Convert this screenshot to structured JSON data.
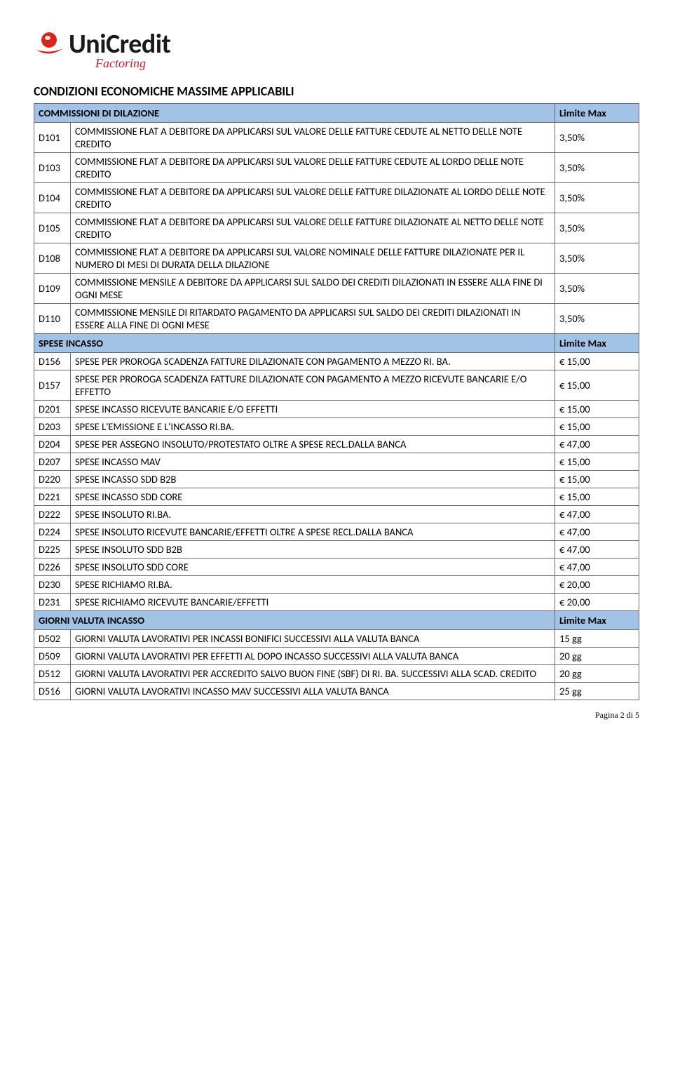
{
  "logo": {
    "icon_colors": {
      "ball": "#d9261c",
      "swoosh": "#d9261c",
      "text": "#1a1a1a",
      "sub": "#c8202f"
    },
    "main": "UniCredit",
    "sub": "Factoring"
  },
  "page_title": "CONDIZIONI ECONOMICHE MASSIME APPLICABILI",
  "colors": {
    "section_bg": "#a2c3e6",
    "border": "#6b6b6b",
    "page_bg": "#ffffff"
  },
  "sections": [
    {
      "title": "COMMISSIONI DI DILAZIONE",
      "limit_label": "Limite Max",
      "rows": [
        {
          "code": "D101",
          "desc": "COMMISSIONE FLAT A DEBITORE DA APPLICARSI SUL VALORE DELLE FATTURE CEDUTE AL NETTO DELLE NOTE CREDITO",
          "value": "3,50%"
        },
        {
          "code": "D103",
          "desc": "COMMISSIONE FLAT A DEBITORE DA APPLICARSI SUL VALORE DELLE FATTURE CEDUTE AL LORDO DELLE NOTE CREDITO",
          "value": "3,50%"
        },
        {
          "code": "D104",
          "desc": "COMMISSIONE FLAT A DEBITORE DA APPLICARSI SUL VALORE DELLE FATTURE DILAZIONATE AL LORDO DELLE NOTE CREDITO",
          "value": "3,50%"
        },
        {
          "code": "D105",
          "desc": "COMMISSIONE FLAT A DEBITORE DA APPLICARSI SUL VALORE DELLE FATTURE DILAZIONATE AL NETTO DELLE NOTE CREDITO",
          "value": "3,50%"
        },
        {
          "code": "D108",
          "desc": "COMMISSIONE FLAT A DEBITORE DA APPLICARSI SUL VALORE NOMINALE DELLE FATTURE DILAZIONATE PER IL NUMERO DI MESI DI DURATA DELLA DILAZIONE",
          "value": "3,50%"
        },
        {
          "code": "D109",
          "desc": "COMMISSIONE MENSILE A DEBITORE DA APPLICARSI SUL SALDO DEI CREDITI DILAZIONATI IN ESSERE ALLA FINE DI OGNI MESE",
          "value": "3,50%"
        },
        {
          "code": "D110",
          "desc": "COMMISSIONE MENSILE DI RITARDATO PAGAMENTO DA APPLICARSI SUL SALDO DEI CREDITI DILAZIONATI IN ESSERE ALLA FINE DI OGNI MESE",
          "value": "3,50%"
        }
      ]
    },
    {
      "title": "SPESE INCASSO",
      "limit_label": "Limite Max",
      "rows": [
        {
          "code": "D156",
          "desc": "SPESE PER PROROGA SCADENZA FATTURE DILAZIONATE CON PAGAMENTO A MEZZO RI. BA.",
          "value": "€ 15,00"
        },
        {
          "code": "D157",
          "desc": "SPESE PER PROROGA SCADENZA FATTURE DILAZIONATE CON PAGAMENTO A MEZZO RICEVUTE BANCARIE E/O EFFETTO",
          "value": "€ 15,00"
        },
        {
          "code": "D201",
          "desc": "SPESE INCASSO RICEVUTE BANCARIE E/O EFFETTI",
          "value": "€ 15,00"
        },
        {
          "code": "D203",
          "desc": "SPESE L'EMISSIONE E L'INCASSO RI.BA.",
          "value": "€ 15,00"
        },
        {
          "code": "D204",
          "desc": "SPESE PER ASSEGNO INSOLUTO/PROTESTATO OLTRE A SPESE RECL.DALLA BANCA",
          "value": "€ 47,00"
        },
        {
          "code": "D207",
          "desc": "SPESE INCASSO MAV",
          "value": "€ 15,00"
        },
        {
          "code": "D220",
          "desc": "SPESE INCASSO SDD B2B",
          "value": "€ 15,00"
        },
        {
          "code": "D221",
          "desc": "SPESE INCASSO SDD CORE",
          "value": "€ 15,00"
        },
        {
          "code": "D222",
          "desc": "SPESE INSOLUTO RI.BA.",
          "value": "€ 47,00"
        },
        {
          "code": "D224",
          "desc": "SPESE INSOLUTO RICEVUTE BANCARIE/EFFETTI OLTRE A SPESE RECL.DALLA BANCA",
          "value": "€ 47,00"
        },
        {
          "code": "D225",
          "desc": "SPESE INSOLUTO SDD B2B",
          "value": "€ 47,00"
        },
        {
          "code": "D226",
          "desc": "SPESE INSOLUTO SDD CORE",
          "value": "€ 47,00"
        },
        {
          "code": "D230",
          "desc": "SPESE RICHIAMO RI.BA.",
          "value": "€ 20,00"
        },
        {
          "code": "D231",
          "desc": "SPESE RICHIAMO RICEVUTE BANCARIE/EFFETTI",
          "value": "€ 20,00"
        }
      ]
    },
    {
      "title": "GIORNI VALUTA INCASSO",
      "limit_label": "Limite Max",
      "rows": [
        {
          "code": "D502",
          "desc": "GIORNI VALUTA LAVORATIVI PER INCASSI BONIFICI SUCCESSIVI ALLA VALUTA BANCA",
          "value": "15 gg"
        },
        {
          "code": "D509",
          "desc": "GIORNI VALUTA LAVORATIVI PER EFFETTI AL DOPO INCASSO SUCCESSIVI ALLA VALUTA BANCA",
          "value": "20 gg"
        },
        {
          "code": "D512",
          "desc": "GIORNI VALUTA LAVORATIVI PER ACCREDITO SALVO BUON FINE (SBF) DI RI. BA. SUCCESSIVI ALLA SCAD. CREDITO",
          "value": "20 gg"
        },
        {
          "code": "D516",
          "desc": "GIORNI VALUTA LAVORATIVI INCASSO MAV SUCCESSIVI ALLA VALUTA BANCA",
          "value": "25 gg"
        }
      ]
    }
  ],
  "footer": "Pagina 2 di 5"
}
